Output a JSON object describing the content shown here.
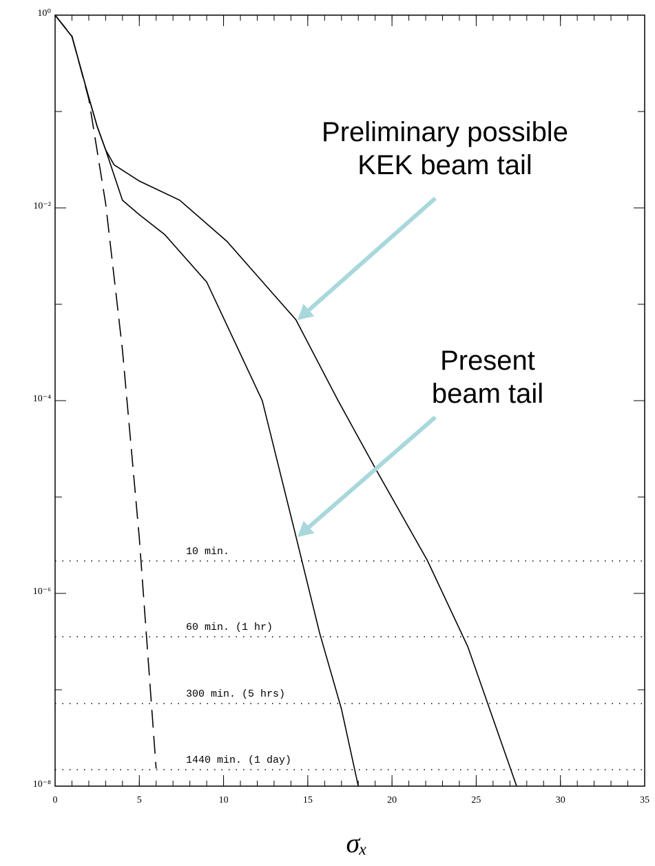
{
  "chart_data": {
    "type": "line",
    "xlabel": "σₓ",
    "log_y": true,
    "xlim": [
      0,
      35
    ],
    "ylim": [
      1e-08,
      1
    ],
    "xticks": [
      0,
      5,
      10,
      15,
      20,
      25,
      30,
      35
    ],
    "xminor_step": 1,
    "yticks": [
      {
        "value": 1,
        "label": "10⁰"
      },
      {
        "value": 0.01,
        "label": "10⁻²"
      },
      {
        "value": 0.0001,
        "label": "10⁻⁴"
      },
      {
        "value": 1e-06,
        "label": "10⁻⁶"
      },
      {
        "value": 1e-08,
        "label": "10⁻⁸"
      }
    ],
    "yminor": [
      0.1,
      0.001,
      1e-05,
      1e-07
    ],
    "series": [
      {
        "color": "#000000",
        "dashed": true,
        "x": [
          0,
          1,
          2,
          3,
          4,
          5,
          6
        ],
        "values": [
          1,
          0.607,
          0.135,
          0.0111,
          0.000335,
          3.73e-06,
          1.52e-08
        ]
      },
      {
        "color": "#000000",
        "dashed": false,
        "x": [
          0,
          1,
          2,
          2.5,
          3,
          4,
          5,
          6.5,
          9,
          12.3,
          14.3,
          15.7,
          17,
          18
        ],
        "values": [
          1,
          0.6,
          0.14,
          0.07,
          0.04,
          0.012,
          0.0085,
          0.0053,
          0.0017,
          0.0001,
          3.9e-06,
          3.9e-07,
          6.3e-08,
          1e-08
        ]
      },
      {
        "color": "#000000",
        "dashed": false,
        "x": [
          0,
          1,
          2,
          2.5,
          3,
          3.5,
          5,
          7.4,
          10.2,
          14.3,
          16.8,
          19,
          22.1,
          24.5,
          27.4
        ],
        "values": [
          1,
          0.6,
          0.14,
          0.07,
          0.04,
          0.028,
          0.019,
          0.012,
          0.0045,
          0.00069,
          0.0001,
          2e-05,
          2.2e-06,
          2.8e-07,
          1e-08
        ]
      }
    ],
    "levels": [
      {
        "label": "10 min.",
        "value": 2.17e-06
      },
      {
        "label": "60 min. (1 hr)",
        "value": 3.55e-07
      },
      {
        "label": "300 min. (5 hrs)",
        "value": 7.2e-08
      },
      {
        "label": "1440 min. (1 day)",
        "value": 1.48e-08
      }
    ],
    "annotations": [
      {
        "lines": [
          "Preliminary possible",
          "KEK beam tail"
        ],
        "color": "#a8d8dc"
      },
      {
        "lines": [
          "Present",
          "beam tail"
        ],
        "color": "#a8d8dc"
      }
    ]
  }
}
